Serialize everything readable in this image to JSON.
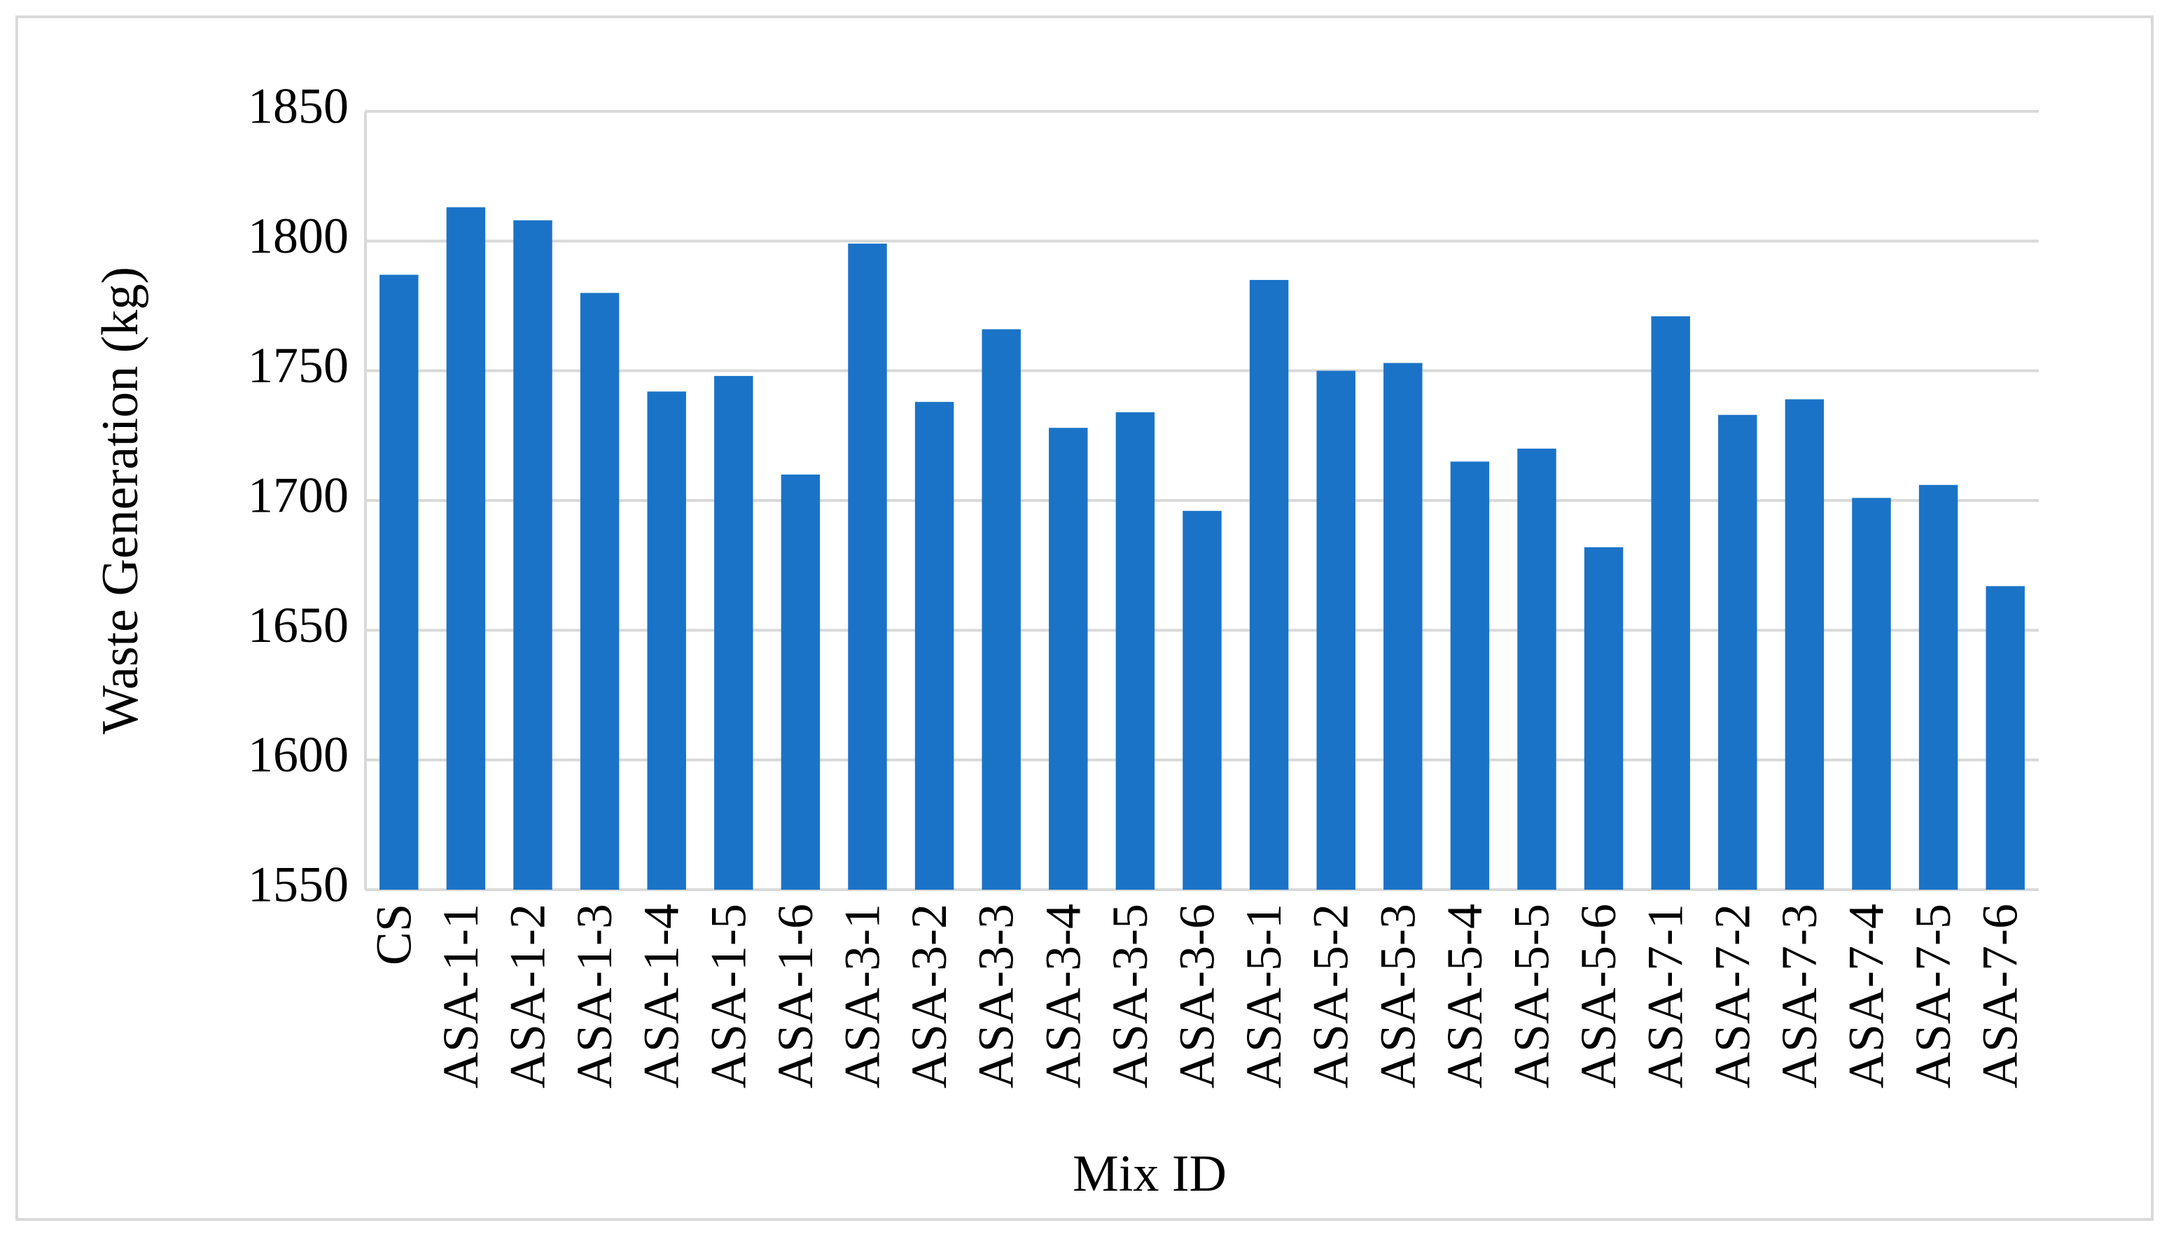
{
  "chart_data": {
    "type": "bar",
    "x_label": "Mix ID",
    "y_label": "Waste Generation (kg)",
    "categories": [
      "CS",
      "ASA-1-1",
      "ASA-1-2",
      "ASA-1-3",
      "ASA-1-4",
      "ASA-1-5",
      "ASA-1-6",
      "ASA-3-1",
      "ASA-3-2",
      "ASA-3-3",
      "ASA-3-4",
      "ASA-3-5",
      "ASA-3-6",
      "ASA-5-1",
      "ASA-5-2",
      "ASA-5-3",
      "ASA-5-4",
      "ASA-5-5",
      "ASA-5-6",
      "ASA-7-1",
      "ASA-7-2",
      "ASA-7-3",
      "ASA-7-4",
      "ASA-7-5",
      "ASA-7-6"
    ],
    "values": [
      1787,
      1813,
      1808,
      1780,
      1742,
      1748,
      1710,
      1799,
      1738,
      1766,
      1728,
      1734,
      1696,
      1785,
      1750,
      1753,
      1715,
      1720,
      1682,
      1771,
      1733,
      1739,
      1701,
      1706,
      1667
    ],
    "color": "#1b73c7",
    "ylim": [
      1550,
      1850
    ],
    "yticks": [
      1550,
      1600,
      1650,
      1700,
      1750,
      1800,
      1850
    ],
    "grid": true
  }
}
